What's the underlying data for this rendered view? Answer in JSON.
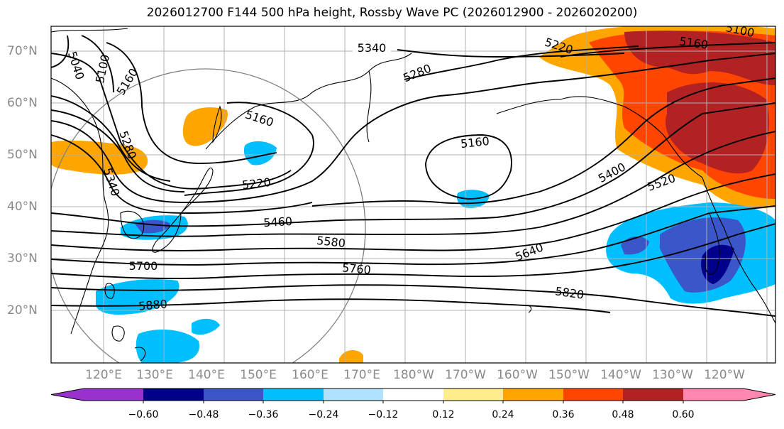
{
  "title": "2026012700 F144 500 hPa height, Rossby Wave PC (2026012900 - 2026020200)",
  "lat_labels": [
    "70°N",
    "60°N",
    "50°N",
    "40°N",
    "30°N",
    "20°N"
  ],
  "lon_labels": [
    "120°E",
    "130°E",
    "140°E",
    "150°E",
    "160°E",
    "170°E",
    "180°W",
    "170°W",
    "160°W",
    "150°W",
    "140°W",
    "130°W",
    "120°W"
  ],
  "contour_labels": [
    "5340",
    "5040",
    "5100",
    "5160",
    "5280",
    "5220",
    "5100",
    "5160",
    "5280",
    "5160",
    "5340",
    "5160",
    "5220",
    "5400",
    "5520",
    "5460",
    "5580",
    "5640",
    "5700",
    "5760",
    "5820",
    "5880"
  ],
  "colorbar": {
    "ticks": [
      "−0.60",
      "−0.48",
      "−0.36",
      "−0.24",
      "−0.12",
      "0.12",
      "0.24",
      "0.36",
      "0.48",
      "0.60"
    ],
    "colors": [
      "#9932cc",
      "#00008b",
      "#3a56c9",
      "#00bfff",
      "#b0e2ff",
      "#ffffff",
      "#ffec8b",
      "#ffa500",
      "#ff4500",
      "#b22222",
      "#ff86b0"
    ]
  }
}
